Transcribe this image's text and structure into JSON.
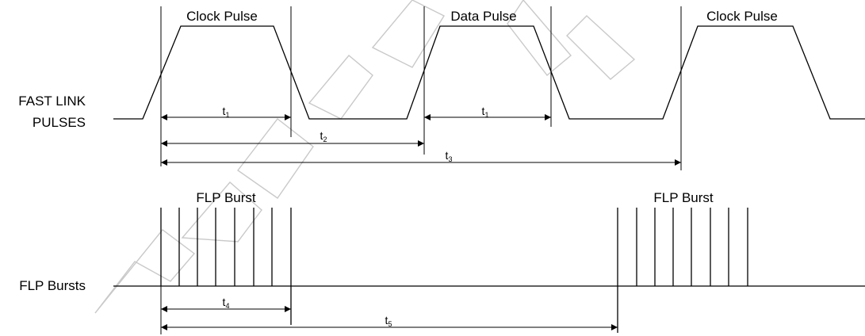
{
  "labels": {
    "clock_pulse_1": "Clock Pulse",
    "data_pulse": "Data Pulse",
    "clock_pulse_2": "Clock Pulse",
    "fast_link_line1": "FAST LINK",
    "fast_link_line2": "PULSES",
    "flp_burst_1": "FLP Burst",
    "flp_burst_2": "FLP Burst",
    "flp_bursts_row": "FLP Bursts"
  },
  "timings": {
    "t1a": {
      "base": "t",
      "sub": "1"
    },
    "t1b": {
      "base": "t",
      "sub": "1"
    },
    "t2": {
      "base": "t",
      "sub": "2"
    },
    "t3": {
      "base": "t",
      "sub": "3"
    },
    "t4": {
      "base": "t",
      "sub": "4"
    },
    "t5": {
      "base": "t",
      "sub": "5"
    }
  }
}
